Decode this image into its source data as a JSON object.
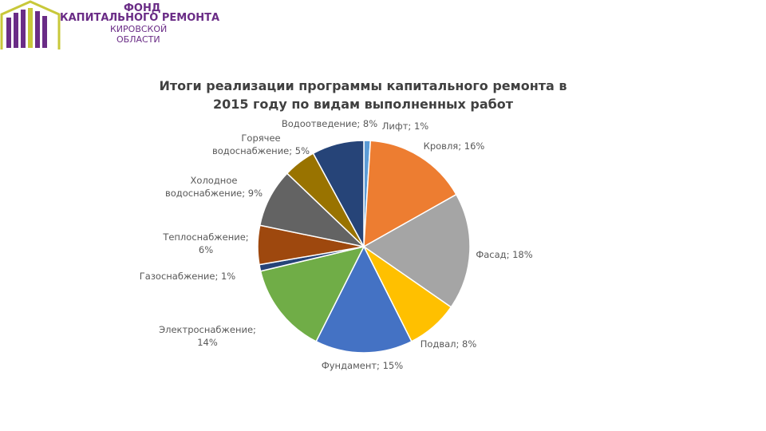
{
  "logo": {
    "line1": "ФОНД",
    "line2": "КАПИТАЛЬНОГО РЕМОНТА",
    "line3": "КИРОВСКОЙ",
    "line4": "ОБЛАСТИ"
  },
  "chart_data": {
    "type": "pie",
    "title": "Итоги реализации программы капитального ремонта в 2015 году по видам выполненных работ",
    "values": [
      1,
      16,
      18,
      8,
      15,
      14,
      1,
      6,
      9,
      5,
      8
    ],
    "value_labels": [
      "Лифт; 1%",
      "Кровля; 16%",
      "Фасад; 18%",
      "Подвал; 8%",
      "Фундамент; 15%",
      "Электроснабжение;\n14%",
      "Газоснабжение; 1%",
      "Теплоснабжение;\n6%",
      "Холодное\nводоснабжение; 9%",
      "Горячее\nводоснабжение; 5%",
      "Водоотведение; 8%"
    ],
    "colors": [
      "#5b9bd5",
      "#ed7d31",
      "#a5a5a5",
      "#ffc000",
      "#4472c4",
      "#70ad47",
      "#264478",
      "#9e480e",
      "#636363",
      "#997300",
      "#264478"
    ]
  }
}
